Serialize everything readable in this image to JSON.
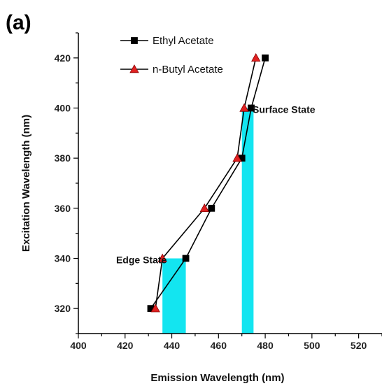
{
  "panel_label": "(a)",
  "chart_data": {
    "type": "line",
    "xlabel": "Emission Wavelength (nm)",
    "ylabel": "Excitation Wavelength (nm)",
    "xlim": [
      400,
      530
    ],
    "ylim": [
      310,
      430
    ],
    "xticks": [
      400,
      420,
      440,
      460,
      480,
      500,
      520
    ],
    "yticks": [
      320,
      340,
      360,
      380,
      400,
      420
    ],
    "grid": false,
    "legend_position": "top-left",
    "series": [
      {
        "name": "Ethyl Acetate",
        "marker": "square",
        "color": "#000000",
        "marker_color": "#000000",
        "points": [
          {
            "x": 431,
            "y": 320
          },
          {
            "x": 446,
            "y": 340
          },
          {
            "x": 457,
            "y": 360
          },
          {
            "x": 470,
            "y": 380
          },
          {
            "x": 474,
            "y": 400
          },
          {
            "x": 480,
            "y": 420
          }
        ]
      },
      {
        "name": "n-Butyl Acetate",
        "marker": "triangle",
        "color": "#000000",
        "marker_color": "#e02020",
        "points": [
          {
            "x": 433,
            "y": 320
          },
          {
            "x": 436,
            "y": 340
          },
          {
            "x": 454,
            "y": 360
          },
          {
            "x": 468,
            "y": 380
          },
          {
            "x": 471,
            "y": 400
          },
          {
            "x": 476,
            "y": 420
          }
        ]
      }
    ],
    "regions": [
      {
        "name": "Edge State",
        "x_range": [
          436,
          446
        ],
        "y_range": [
          310,
          340
        ],
        "color": "#13e5f0"
      },
      {
        "name": "Surface State",
        "x_range": [
          470,
          475
        ],
        "y_range": [
          310,
          400
        ],
        "color": "#13e5f0"
      }
    ],
    "annotations": [
      {
        "text": "Edge State",
        "x": 427,
        "y": 338
      },
      {
        "text": "Surface State",
        "x": 488,
        "y": 398
      }
    ]
  }
}
